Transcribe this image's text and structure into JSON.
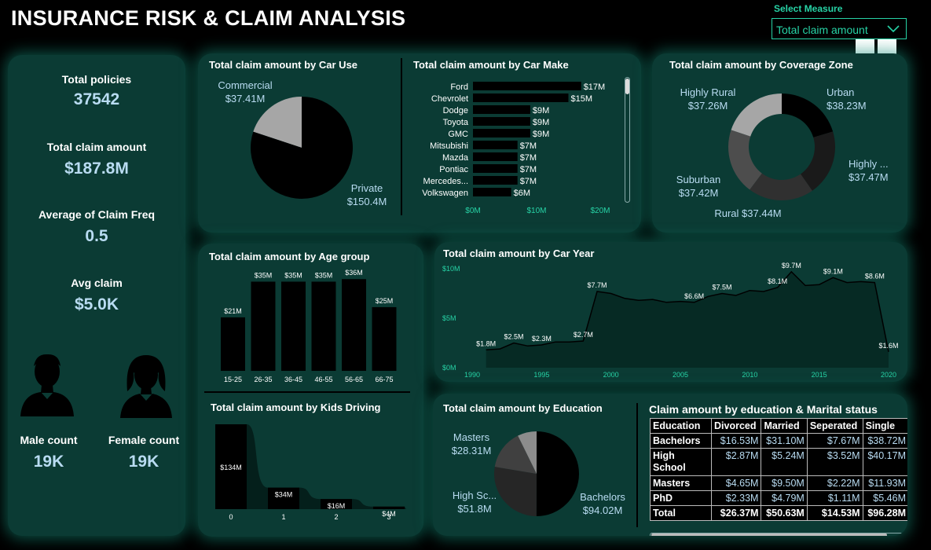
{
  "header": {
    "title": "INSURANCE RISK & CLAIM ANALYSIS"
  },
  "measure": {
    "label": "Select Measure",
    "value": "Total claim amount"
  },
  "kpis": {
    "total_policies": {
      "label": "Total policies",
      "value": "37542"
    },
    "total_claim": {
      "label": "Total claim amount",
      "value": "$187.8M"
    },
    "avg_freq": {
      "label": "Average of Claim Freq",
      "value": "0.5"
    },
    "avg_claim": {
      "label": "Avg claim",
      "value": "$5.0K"
    },
    "male": {
      "label": "Male count",
      "value": "19K"
    },
    "female": {
      "label": "Female count",
      "value": "19K"
    }
  },
  "car_use": {
    "title": "Total claim amount by Car Use",
    "slices": [
      {
        "name": "Commercial",
        "label": "$37.41M",
        "value": 37.41,
        "color": "#a6a6a6"
      },
      {
        "name": "Private",
        "label": "$150.4M",
        "value": 150.4,
        "color": "#000000"
      }
    ]
  },
  "car_make": {
    "title": "Total claim amount by Car Make",
    "bars": [
      {
        "name": "Ford",
        "label": "$17M",
        "value": 17
      },
      {
        "name": "Chevrolet",
        "label": "$15M",
        "value": 15
      },
      {
        "name": "Dodge",
        "label": "$9M",
        "value": 9
      },
      {
        "name": "Toyota",
        "label": "$9M",
        "value": 9
      },
      {
        "name": "GMC",
        "label": "$9M",
        "value": 9
      },
      {
        "name": "Mitsubishi",
        "label": "$7M",
        "value": 7
      },
      {
        "name": "Mazda",
        "label": "$7M",
        "value": 7
      },
      {
        "name": "Pontiac",
        "label": "$7M",
        "value": 7
      },
      {
        "name": "Mercedes...",
        "label": "$7M",
        "value": 7
      },
      {
        "name": "Volkswagen",
        "label": "$6M",
        "value": 6
      }
    ],
    "ticks": [
      "$0M",
      "$10M",
      "$20M"
    ],
    "max": 20
  },
  "coverage": {
    "title": "Total claim amount by Coverage Zone",
    "slices": [
      {
        "name": "Urban",
        "label": "$38.23M",
        "value": 38.23,
        "color": "#000000"
      },
      {
        "name": "Highly ...",
        "label": "$37.47M",
        "value": 37.47,
        "color": "#1a1a1a"
      },
      {
        "name": "Rural",
        "label": "$37.44M",
        "value": 37.44,
        "color": "#303030"
      },
      {
        "name": "Suburban",
        "label": "$37.42M",
        "value": 37.42,
        "color": "#4d4d4d"
      },
      {
        "name": "Highly Rural",
        "label": "$37.26M",
        "value": 37.26,
        "color": "#a6a6a6"
      }
    ]
  },
  "age": {
    "title": "Total claim amount by Age group",
    "bars": [
      {
        "name": "15-25",
        "label": "$21M",
        "value": 21
      },
      {
        "name": "26-35",
        "label": "$35M",
        "value": 35
      },
      {
        "name": "36-45",
        "label": "$35M",
        "value": 35
      },
      {
        "name": "46-55",
        "label": "$35M",
        "value": 35
      },
      {
        "name": "56-65",
        "label": "$36M",
        "value": 36
      },
      {
        "name": "66-75",
        "label": "$25M",
        "value": 25
      }
    ]
  },
  "kids": {
    "title": "Total claim amount by Kids Driving",
    "points": [
      {
        "x": "0",
        "label": "$134M",
        "value": 134
      },
      {
        "x": "1",
        "label": "$34M",
        "value": 34
      },
      {
        "x": "2",
        "label": "$16M",
        "value": 16
      },
      {
        "x": "3",
        "label": "$4M",
        "value": 4
      }
    ]
  },
  "car_year": {
    "title": "Total claim amount by Car Year",
    "yticks": [
      "$10M",
      "$5M",
      "$0M"
    ],
    "xticks": [
      "1990",
      "1995",
      "2000",
      "2005",
      "2010",
      "2015",
      "2020"
    ],
    "xmin": 1990,
    "xmax": 2020,
    "ymax": 10,
    "points": [
      [
        1991,
        1.8
      ],
      [
        1992,
        1.9
      ],
      [
        1993,
        2.5
      ],
      [
        1994,
        2.2
      ],
      [
        1995,
        2.3
      ],
      [
        1996,
        2.6
      ],
      [
        1997,
        2.6
      ],
      [
        1998,
        2.7
      ],
      [
        1999,
        7.7
      ],
      [
        2000,
        7.5
      ],
      [
        2001,
        7.0
      ],
      [
        2002,
        6.8
      ],
      [
        2003,
        6.9
      ],
      [
        2004,
        6.6
      ],
      [
        2005,
        6.7
      ],
      [
        2006,
        6.6
      ],
      [
        2007,
        7.2
      ],
      [
        2008,
        7.5
      ],
      [
        2009,
        7.3
      ],
      [
        2010,
        7.8
      ],
      [
        2011,
        7.7
      ],
      [
        2012,
        8.1
      ],
      [
        2013,
        9.7
      ],
      [
        2014,
        8.3
      ],
      [
        2015,
        8.4
      ],
      [
        2016,
        9.1
      ],
      [
        2017,
        8.6
      ],
      [
        2018,
        8.7
      ],
      [
        2019,
        8.6
      ],
      [
        2020,
        1.6
      ]
    ],
    "labels": [
      {
        "x": 1991,
        "y": 1.8,
        "text": "$1.8M"
      },
      {
        "x": 1993,
        "y": 2.5,
        "text": "$2.5M"
      },
      {
        "x": 1995,
        "y": 2.3,
        "text": "$2.3M"
      },
      {
        "x": 1998,
        "y": 2.7,
        "text": "$2.7M"
      },
      {
        "x": 1999,
        "y": 7.7,
        "text": "$7.7M"
      },
      {
        "x": 2006,
        "y": 6.6,
        "text": "$6.6M"
      },
      {
        "x": 2008,
        "y": 7.5,
        "text": "$7.5M"
      },
      {
        "x": 2012,
        "y": 8.1,
        "text": "$8.1M"
      },
      {
        "x": 2013,
        "y": 9.7,
        "text": "$9.7M"
      },
      {
        "x": 2016,
        "y": 9.1,
        "text": "$9.1M"
      },
      {
        "x": 2019,
        "y": 8.6,
        "text": "$8.6M"
      },
      {
        "x": 2020,
        "y": 1.6,
        "text": "$1.6M"
      }
    ]
  },
  "education": {
    "title": "Total claim amount by Education",
    "slices": [
      {
        "name": "Bachelors",
        "label": "$94.02M",
        "value": 94.02,
        "color": "#000000"
      },
      {
        "name": "High Sc...",
        "label": "$51.8M",
        "value": 51.8,
        "color": "#262626"
      },
      {
        "name": "Masters",
        "label": "$28.31M",
        "value": 28.31,
        "color": "#404040"
      },
      {
        "name": "PhD",
        "label": "",
        "value": 13.67,
        "color": "#8c8c8c"
      }
    ]
  },
  "matrix": {
    "title": "Claim amount by education & Marital status",
    "columns": [
      "Education",
      "Divorced",
      "Married",
      "Seperated",
      "Single"
    ],
    "rows": [
      [
        "Bachelors",
        "$16.53M",
        "$31.10M",
        "$7.67M",
        "$38.72M"
      ],
      [
        "High School",
        "$2.87M",
        "$5.24M",
        "$3.52M",
        "$40.17M"
      ],
      [
        "Masters",
        "$4.65M",
        "$9.50M",
        "$2.22M",
        "$11.93M"
      ],
      [
        "PhD",
        "$2.33M",
        "$4.79M",
        "$1.11M",
        "$5.46M"
      ]
    ],
    "total": [
      "Total",
      "$26.37M",
      "$50.63M",
      "$14.53M",
      "$96.28M"
    ]
  }
}
